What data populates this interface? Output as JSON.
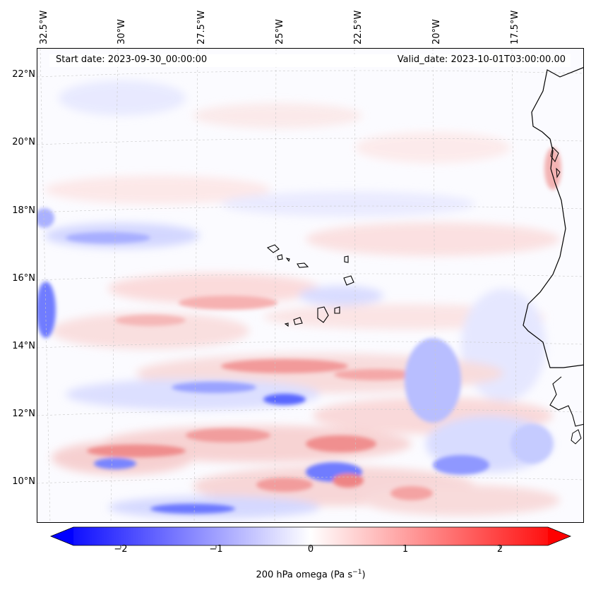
{
  "map": {
    "start_date": "Start date: 2023-09-30_00:00:00",
    "valid_date": "Valid_date: 2023-10-01T03:00:00.00",
    "lon_labels": [
      "32.5°W",
      "30°W",
      "27.5°W",
      "25°W",
      "22.5°W",
      "20°W",
      "17.5°W"
    ],
    "lat_labels": [
      "22°N",
      "20°N",
      "18°N",
      "16°N",
      "14°N",
      "12°N",
      "10°N"
    ],
    "field": "200 hPa omega",
    "region": "Cape Verde / West African coast"
  },
  "colorbar": {
    "ticks": [
      "−2",
      "−1",
      "0",
      "1",
      "2"
    ],
    "label_main": "200 hPa omega (Pa s",
    "label_exp": "−1",
    "label_close": ")",
    "range": [
      -2.75,
      2.75
    ],
    "colors": {
      "neg": "#0000ff",
      "mid": "#ffffff",
      "pos": "#ff0000"
    }
  }
}
